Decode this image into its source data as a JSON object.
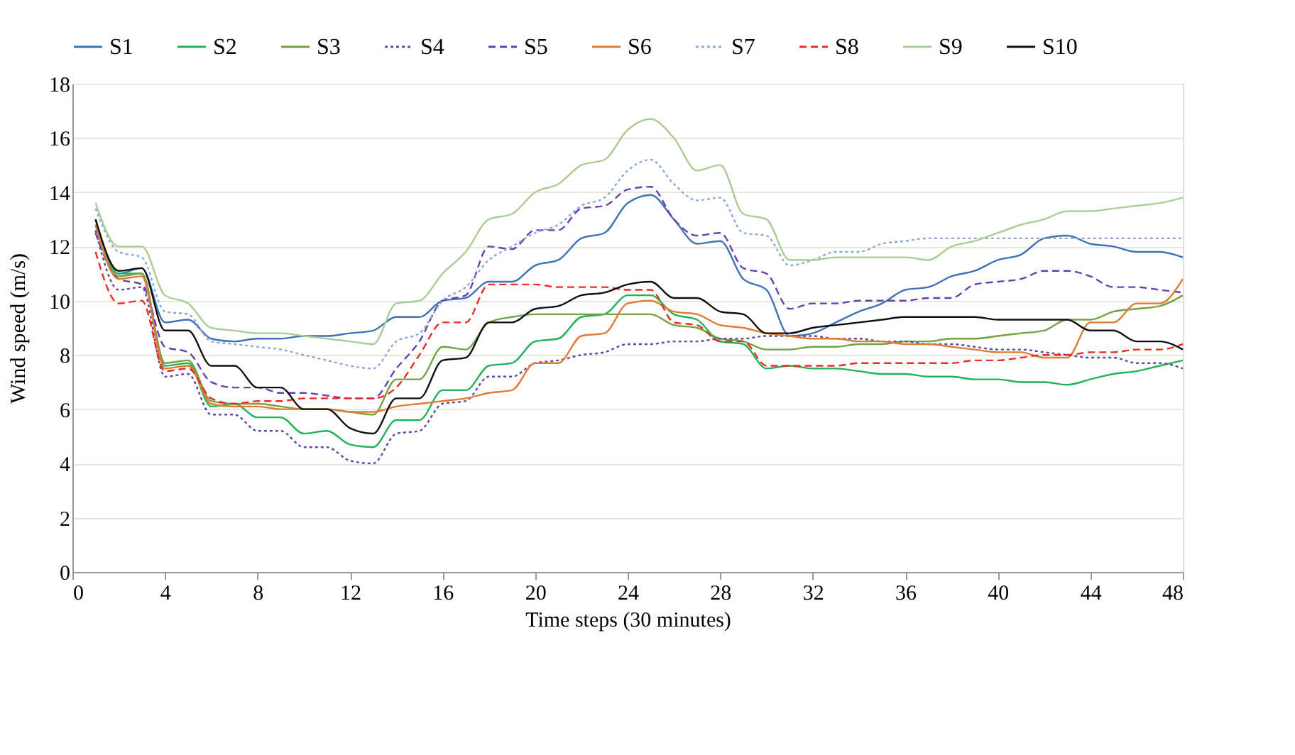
{
  "chart_data": {
    "type": "line",
    "xlabel": "Time steps (30 minutes)",
    "ylabel": "Wind speed (m/s)",
    "x": [
      1,
      2,
      3,
      4,
      5,
      6,
      7,
      8,
      9,
      10,
      11,
      12,
      13,
      14,
      15,
      16,
      17,
      18,
      19,
      20,
      21,
      22,
      23,
      24,
      25,
      26,
      27,
      28,
      29,
      30,
      31,
      32,
      33,
      34,
      35,
      36,
      37,
      38,
      39,
      40,
      41,
      42,
      43,
      44,
      45,
      46,
      47,
      48
    ],
    "xlim": [
      0,
      48
    ],
    "xticks": [
      0,
      4,
      8,
      12,
      16,
      20,
      24,
      28,
      32,
      36,
      40,
      44,
      48
    ],
    "ylim": [
      0,
      18
    ],
    "yticks": [
      0,
      2,
      4,
      6,
      8,
      10,
      12,
      14,
      16,
      18
    ],
    "grid": "y",
    "legend": "top",
    "marker": "none",
    "series": [
      {
        "name": "S1",
        "color": "#3f72b5",
        "line_style": "solid",
        "values": [
          13.0,
          11.0,
          11.2,
          9.2,
          9.3,
          8.6,
          8.5,
          8.6,
          8.6,
          8.7,
          8.7,
          8.8,
          8.9,
          9.4,
          9.4,
          10.0,
          10.1,
          10.7,
          10.7,
          11.3,
          11.5,
          12.3,
          12.5,
          13.6,
          13.9,
          13.0,
          12.1,
          12.2,
          10.8,
          10.4,
          8.7,
          8.8,
          9.2,
          9.6,
          9.9,
          10.4,
          10.5,
          10.9,
          11.1,
          11.5,
          11.7,
          12.3,
          12.4,
          12.1,
          12.0,
          11.8,
          11.8,
          11.6
        ]
      },
      {
        "name": "S2",
        "color": "#1fb35a",
        "line_style": "solid",
        "values": [
          12.8,
          11.0,
          11.0,
          7.6,
          7.7,
          6.1,
          6.2,
          5.7,
          5.7,
          5.1,
          5.2,
          4.7,
          4.6,
          5.6,
          5.6,
          6.7,
          6.7,
          7.6,
          7.7,
          8.5,
          8.6,
          9.4,
          9.5,
          10.2,
          10.2,
          9.5,
          9.3,
          8.5,
          8.4,
          7.5,
          7.6,
          7.5,
          7.5,
          7.4,
          7.3,
          7.3,
          7.2,
          7.2,
          7.1,
          7.1,
          7.0,
          7.0,
          6.9,
          7.1,
          7.3,
          7.4,
          7.6,
          7.8
        ]
      },
      {
        "name": "S3",
        "color": "#72a244",
        "line_style": "solid",
        "values": [
          12.8,
          10.9,
          11.0,
          7.7,
          7.8,
          6.3,
          6.2,
          6.2,
          6.1,
          6.0,
          6.0,
          5.9,
          5.8,
          7.1,
          7.1,
          8.3,
          8.2,
          9.2,
          9.4,
          9.5,
          9.5,
          9.5,
          9.5,
          9.5,
          9.5,
          9.1,
          9.0,
          8.6,
          8.5,
          8.2,
          8.2,
          8.3,
          8.3,
          8.4,
          8.4,
          8.5,
          8.5,
          8.6,
          8.6,
          8.7,
          8.8,
          8.9,
          9.3,
          9.3,
          9.6,
          9.7,
          9.8,
          10.2
        ]
      },
      {
        "name": "S4",
        "color": "#5a4c9e",
        "line_style": "dotted",
        "values": [
          12.6,
          10.4,
          10.5,
          7.2,
          7.3,
          5.8,
          5.8,
          5.2,
          5.2,
          4.6,
          4.6,
          4.1,
          4.0,
          5.1,
          5.2,
          6.2,
          6.3,
          7.2,
          7.2,
          7.7,
          7.8,
          8.0,
          8.1,
          8.4,
          8.4,
          8.5,
          8.5,
          8.6,
          8.6,
          8.7,
          8.7,
          8.7,
          8.6,
          8.6,
          8.5,
          8.5,
          8.4,
          8.4,
          8.3,
          8.2,
          8.2,
          8.1,
          8.0,
          7.9,
          7.9,
          7.7,
          7.7,
          7.5
        ]
      },
      {
        "name": "S5",
        "color": "#6640b0",
        "line_style": "dashed",
        "values": [
          12.5,
          10.8,
          10.6,
          8.3,
          8.1,
          7.0,
          6.8,
          6.8,
          6.6,
          6.6,
          6.5,
          6.4,
          6.4,
          7.5,
          8.5,
          10.0,
          10.2,
          12.0,
          11.9,
          12.6,
          12.6,
          13.4,
          13.5,
          14.1,
          14.2,
          13.0,
          12.4,
          12.5,
          11.2,
          11.0,
          9.7,
          9.9,
          9.9,
          10.0,
          10.0,
          10.0,
          10.1,
          10.1,
          10.6,
          10.7,
          10.8,
          11.1,
          11.1,
          10.9,
          10.5,
          10.5,
          10.4,
          10.3
        ]
      },
      {
        "name": "S6",
        "color": "#e27b32",
        "line_style": "solid",
        "values": [
          12.8,
          10.8,
          10.9,
          7.5,
          7.6,
          6.2,
          6.1,
          6.1,
          6.0,
          6.0,
          6.0,
          5.9,
          5.9,
          6.1,
          6.2,
          6.3,
          6.4,
          6.6,
          6.7,
          7.7,
          7.7,
          8.7,
          8.8,
          9.9,
          10.0,
          9.6,
          9.5,
          9.1,
          9.0,
          8.8,
          8.7,
          8.6,
          8.6,
          8.5,
          8.5,
          8.4,
          8.4,
          8.3,
          8.2,
          8.1,
          8.1,
          7.9,
          7.9,
          9.2,
          9.2,
          9.9,
          9.9,
          10.8
        ]
      },
      {
        "name": "S7",
        "color": "#8aa9d9",
        "line_style": "dotted",
        "values": [
          13.4,
          11.8,
          11.6,
          9.6,
          9.5,
          8.5,
          8.4,
          8.3,
          8.2,
          8.0,
          7.8,
          7.6,
          7.5,
          8.5,
          8.8,
          10.0,
          10.5,
          11.5,
          12.0,
          12.5,
          12.8,
          13.5,
          13.8,
          14.8,
          15.2,
          14.3,
          13.7,
          13.8,
          12.5,
          12.4,
          11.3,
          11.5,
          11.8,
          11.8,
          12.1,
          12.2,
          12.3,
          12.3,
          12.3,
          12.3,
          12.3,
          12.3,
          12.3,
          12.3,
          12.3,
          12.3,
          12.3,
          12.3
        ]
      },
      {
        "name": "S8",
        "color": "#ee2a24",
        "line_style": "dashed",
        "values": [
          11.8,
          9.9,
          10.0,
          7.4,
          7.5,
          6.4,
          6.2,
          6.3,
          6.3,
          6.4,
          6.4,
          6.4,
          6.4,
          6.8,
          8.0,
          9.2,
          9.2,
          10.6,
          10.6,
          10.6,
          10.5,
          10.5,
          10.5,
          10.4,
          10.4,
          9.2,
          9.1,
          8.5,
          8.5,
          7.6,
          7.6,
          7.6,
          7.6,
          7.7,
          7.7,
          7.7,
          7.7,
          7.7,
          7.8,
          7.8,
          7.9,
          8.0,
          8.0,
          8.1,
          8.1,
          8.2,
          8.2,
          8.4
        ]
      },
      {
        "name": "S9",
        "color": "#a9cd92",
        "line_style": "solid",
        "values": [
          13.6,
          12.0,
          12.0,
          10.2,
          9.9,
          9.0,
          8.9,
          8.8,
          8.8,
          8.7,
          8.6,
          8.5,
          8.4,
          9.9,
          10.0,
          11.0,
          11.8,
          13.0,
          13.2,
          14.0,
          14.3,
          15.0,
          15.2,
          16.3,
          16.7,
          16.0,
          14.8,
          15.0,
          13.2,
          13.0,
          11.5,
          11.5,
          11.6,
          11.6,
          11.6,
          11.6,
          11.5,
          12.0,
          12.2,
          12.5,
          12.8,
          13.0,
          13.3,
          13.3,
          13.4,
          13.5,
          13.6,
          13.8
        ]
      },
      {
        "name": "S10",
        "color": "#111111",
        "line_style": "solid",
        "values": [
          13.0,
          11.1,
          11.2,
          8.9,
          8.9,
          7.6,
          7.6,
          6.8,
          6.8,
          6.0,
          6.0,
          5.3,
          5.1,
          6.4,
          6.4,
          7.8,
          7.9,
          9.2,
          9.2,
          9.7,
          9.8,
          10.2,
          10.3,
          10.6,
          10.7,
          10.1,
          10.1,
          9.6,
          9.5,
          8.8,
          8.8,
          9.0,
          9.1,
          9.2,
          9.3,
          9.4,
          9.4,
          9.4,
          9.4,
          9.3,
          9.3,
          9.3,
          9.3,
          8.9,
          8.9,
          8.5,
          8.5,
          8.2
        ]
      }
    ]
  }
}
